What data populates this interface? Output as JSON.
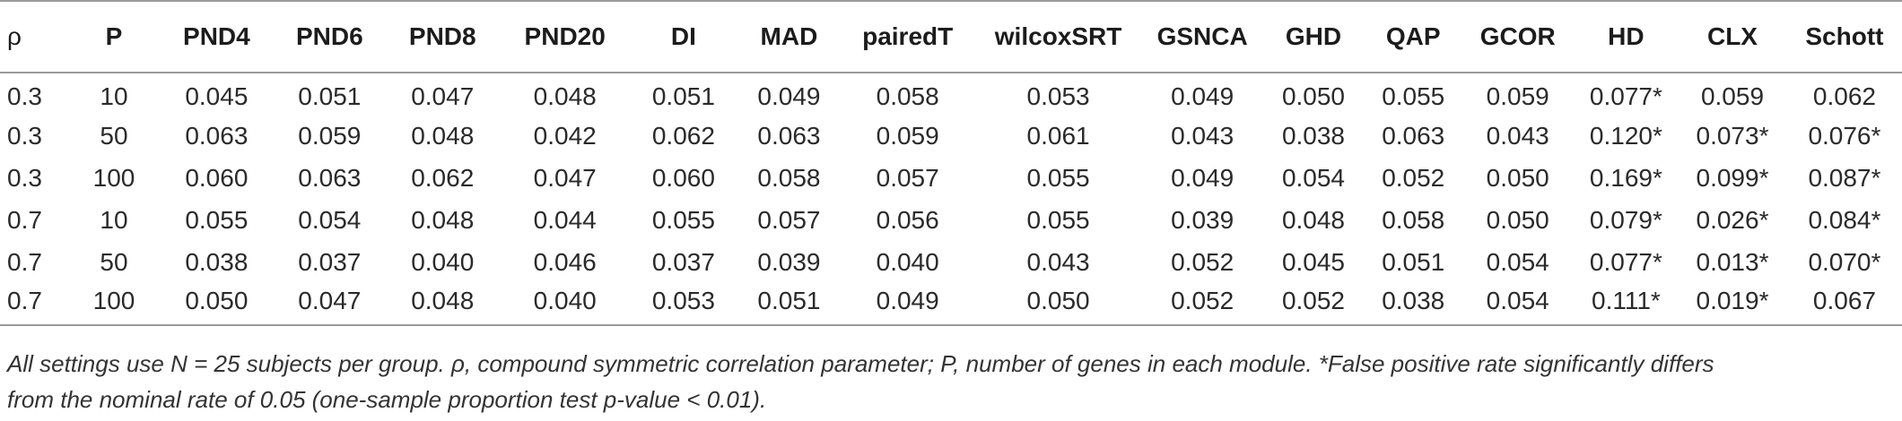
{
  "table": {
    "columns": [
      "ρ",
      "P",
      "PND4",
      "PND6",
      "PND8",
      "PND20",
      "DI",
      "MAD",
      "pairedT",
      "wilcoxSRT",
      "GSNCA",
      "GHD",
      "QAP",
      "GCOR",
      "HD",
      "CLX",
      "Schott"
    ],
    "rows": [
      [
        "0.3",
        "10",
        "0.045",
        "0.051",
        "0.047",
        "0.048",
        "0.051",
        "0.049",
        "0.058",
        "0.053",
        "0.049",
        "0.050",
        "0.055",
        "0.059",
        "0.077*",
        "0.059",
        "0.062"
      ],
      [
        "0.3",
        "50",
        "0.063",
        "0.059",
        "0.048",
        "0.042",
        "0.062",
        "0.063",
        "0.059",
        "0.061",
        "0.043",
        "0.038",
        "0.063",
        "0.043",
        "0.120*",
        "0.073*",
        "0.076*"
      ],
      [
        "0.3",
        "100",
        "0.060",
        "0.063",
        "0.062",
        "0.047",
        "0.060",
        "0.058",
        "0.057",
        "0.055",
        "0.049",
        "0.054",
        "0.052",
        "0.050",
        "0.169*",
        "0.099*",
        "0.087*"
      ],
      [
        "0.7",
        "10",
        "0.055",
        "0.054",
        "0.048",
        "0.044",
        "0.055",
        "0.057",
        "0.056",
        "0.055",
        "0.039",
        "0.048",
        "0.058",
        "0.050",
        "0.079*",
        "0.026*",
        "0.084*"
      ],
      [
        "0.7",
        "50",
        "0.038",
        "0.037",
        "0.040",
        "0.046",
        "0.037",
        "0.039",
        "0.040",
        "0.043",
        "0.052",
        "0.045",
        "0.051",
        "0.054",
        "0.077*",
        "0.013*",
        "0.070*"
      ],
      [
        "0.7",
        "100",
        "0.050",
        "0.047",
        "0.048",
        "0.040",
        "0.053",
        "0.051",
        "0.049",
        "0.050",
        "0.052",
        "0.052",
        "0.038",
        "0.054",
        "0.111*",
        "0.019*",
        "0.067"
      ]
    ]
  },
  "footnote": {
    "line1": "All settings use N = 25 subjects per group. ρ, compound symmetric correlation parameter; P, number of genes in each module. *False positive rate significantly differs",
    "line2": "from the nominal rate of 0.05 (one-sample proportion test p-value < 0.01)."
  }
}
